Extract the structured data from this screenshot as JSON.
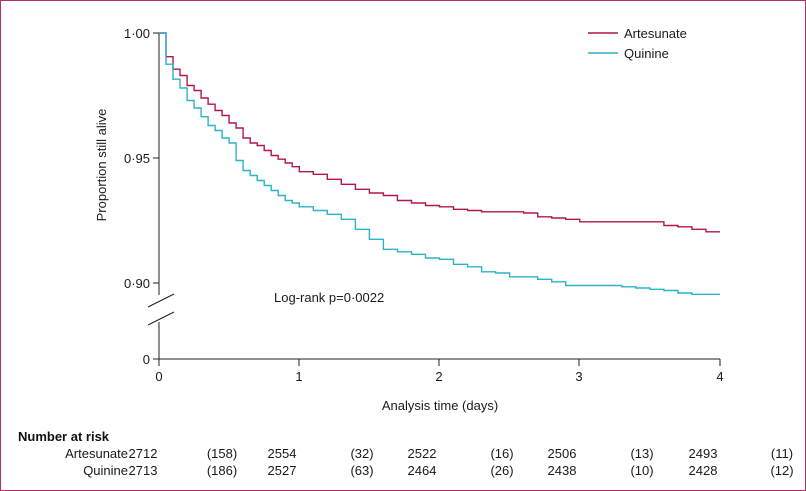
{
  "chart_data": {
    "type": "line",
    "title": "",
    "xlabel": "Analysis time (days)",
    "ylabel": "Proportion still alive",
    "xlim": [
      0,
      4
    ],
    "y_axis_break": true,
    "y_ticks": [
      "0",
      "0·90",
      "0·95",
      "1·00"
    ],
    "x_ticks": [
      "0",
      "1",
      "2",
      "3",
      "4"
    ],
    "grid": false,
    "legend_position": "top-right",
    "annotation": "Log-rank p=0·0022",
    "series": [
      {
        "name": "Artesunate",
        "color": "#b0174e",
        "x": [
          0,
          0.05,
          0.1,
          0.15,
          0.2,
          0.25,
          0.3,
          0.35,
          0.4,
          0.45,
          0.5,
          0.55,
          0.6,
          0.65,
          0.7,
          0.75,
          0.8,
          0.85,
          0.9,
          0.95,
          1.0,
          1.1,
          1.2,
          1.3,
          1.4,
          1.5,
          1.6,
          1.7,
          1.8,
          1.9,
          2.0,
          2.1,
          2.2,
          2.3,
          2.4,
          2.5,
          2.6,
          2.7,
          2.8,
          2.9,
          3.0,
          3.1,
          3.2,
          3.3,
          3.4,
          3.5,
          3.6,
          3.7,
          3.8,
          3.9,
          4.0
        ],
        "y": [
          1.0,
          0.9905,
          0.9855,
          0.983,
          0.979,
          0.977,
          0.974,
          0.9715,
          0.969,
          0.967,
          0.964,
          0.962,
          0.958,
          0.956,
          0.955,
          0.953,
          0.951,
          0.9495,
          0.948,
          0.9465,
          0.9445,
          0.9435,
          0.9415,
          0.9395,
          0.9375,
          0.936,
          0.935,
          0.933,
          0.932,
          0.931,
          0.9305,
          0.9295,
          0.929,
          0.9285,
          0.9285,
          0.9285,
          0.928,
          0.9265,
          0.926,
          0.9255,
          0.9245,
          0.9245,
          0.9245,
          0.9245,
          0.9245,
          0.9245,
          0.923,
          0.9225,
          0.9215,
          0.9205,
          0.9205
        ]
      },
      {
        "name": "Quinine",
        "color": "#2db3c6",
        "x": [
          0,
          0.05,
          0.1,
          0.15,
          0.2,
          0.25,
          0.3,
          0.35,
          0.4,
          0.45,
          0.5,
          0.55,
          0.6,
          0.65,
          0.7,
          0.75,
          0.8,
          0.85,
          0.9,
          0.95,
          1.0,
          1.1,
          1.2,
          1.3,
          1.4,
          1.5,
          1.6,
          1.7,
          1.8,
          1.9,
          2.0,
          2.1,
          2.2,
          2.3,
          2.4,
          2.5,
          2.6,
          2.7,
          2.8,
          2.9,
          3.0,
          3.1,
          3.2,
          3.3,
          3.4,
          3.5,
          3.6,
          3.7,
          3.8,
          3.9,
          4.0
        ],
        "y": [
          1.0,
          0.9875,
          0.9815,
          0.978,
          0.973,
          0.97,
          0.9665,
          0.963,
          0.961,
          0.958,
          0.956,
          0.949,
          0.945,
          0.943,
          0.941,
          0.939,
          0.937,
          0.935,
          0.933,
          0.932,
          0.9305,
          0.929,
          0.9275,
          0.9255,
          0.9215,
          0.9175,
          0.9135,
          0.9125,
          0.9115,
          0.91,
          0.9095,
          0.9075,
          0.9065,
          0.9045,
          0.904,
          0.9025,
          0.9025,
          0.9015,
          0.9005,
          0.899,
          0.899,
          0.899,
          0.899,
          0.8985,
          0.898,
          0.8975,
          0.897,
          0.896,
          0.8955,
          0.8955,
          0.8955
        ]
      }
    ]
  },
  "risk_table": {
    "title": "Number at risk",
    "rows": [
      {
        "label": "Artesunate",
        "values": [
          "2712",
          "(158)",
          "2554",
          "(32)",
          "2522",
          "(16)",
          "2506",
          "(13)",
          "2493",
          "(11)"
        ]
      },
      {
        "label": "Quinine",
        "values": [
          "2713",
          "(186)",
          "2527",
          "(63)",
          "2464",
          "(26)",
          "2438",
          "(10)",
          "2428",
          "(12)"
        ]
      }
    ]
  }
}
